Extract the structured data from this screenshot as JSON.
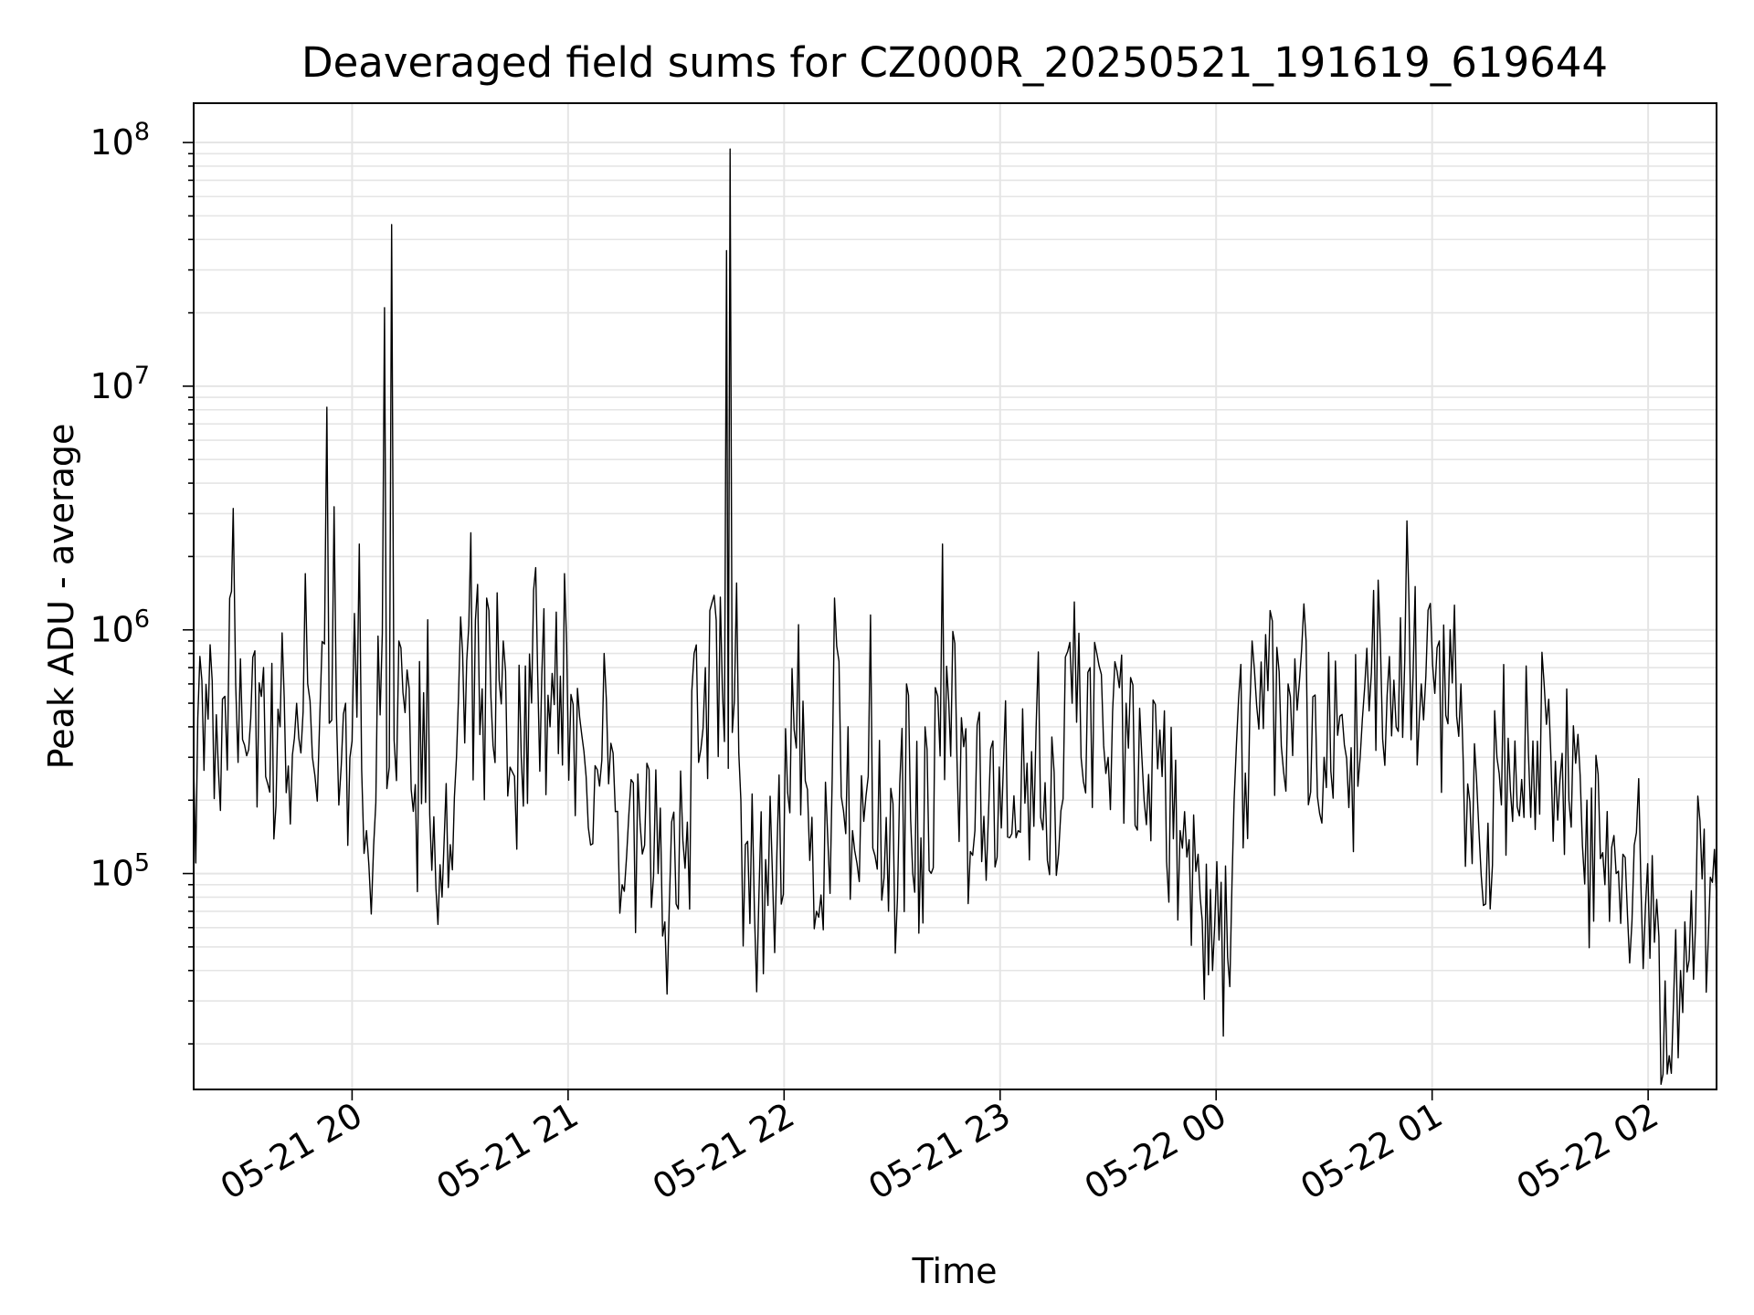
{
  "chart_data": {
    "type": "line",
    "title": "Deaveraged field sums for CZ000R_20250521_191619_619644",
    "xlabel": "Time",
    "ylabel": "Peak ADU - average",
    "y_scale": "log",
    "ylim": [
      13000,
      145000000
    ],
    "xlim": [
      "2025-05-21 19:16",
      "2025-05-22 02:19"
    ],
    "grid": true,
    "line_color": "#000000",
    "grid_color": "#e5e5e5",
    "x_ticks": [
      {
        "value": "2025-05-21 20:00",
        "label": "05-21 20"
      },
      {
        "value": "2025-05-21 21:00",
        "label": "05-21 21"
      },
      {
        "value": "2025-05-21 22:00",
        "label": "05-21 22"
      },
      {
        "value": "2025-05-21 23:00",
        "label": "05-21 23"
      },
      {
        "value": "2025-05-22 00:00",
        "label": "05-22 00"
      },
      {
        "value": "2025-05-22 01:00",
        "label": "05-22 01"
      },
      {
        "value": "2025-05-22 02:00",
        "label": "05-22 02"
      }
    ],
    "y_ticks": [
      {
        "value": 100000,
        "base": "10",
        "exp": "5"
      },
      {
        "value": 1000000,
        "base": "10",
        "exp": "6"
      },
      {
        "value": 10000000,
        "base": "10",
        "exp": "7"
      },
      {
        "value": 100000000,
        "base": "10",
        "exp": "8"
      }
    ],
    "series": [
      {
        "points": [
          [
            "2025-05-21 19:16",
            280000
          ],
          [
            "2025-05-21 19:20",
            430000
          ],
          [
            "2025-05-21 19:24",
            520000
          ],
          [
            "2025-05-21 19:26",
            1350000
          ],
          [
            "2025-05-21 19:27",
            3150000
          ],
          [
            "2025-05-21 19:29",
            760000
          ],
          [
            "2025-05-21 19:33",
            820000
          ],
          [
            "2025-05-21 19:36",
            250000
          ],
          [
            "2025-05-21 19:40",
            400000
          ],
          [
            "2025-05-21 19:44",
            360000
          ],
          [
            "2025-05-21 19:47",
            1700000
          ],
          [
            "2025-05-21 19:49",
            300000
          ],
          [
            "2025-05-21 19:51",
            420000
          ],
          [
            "2025-05-21 19:53",
            8200000
          ],
          [
            "2025-05-21 19:55",
            3200000
          ],
          [
            "2025-05-21 19:57",
            280000
          ],
          [
            "2025-05-21 20:00",
            350000
          ],
          [
            "2025-05-21 20:02",
            2250000
          ],
          [
            "2025-05-21 20:04",
            150000
          ],
          [
            "2025-05-21 20:06",
            130000
          ],
          [
            "2025-05-21 20:09",
            21000000
          ],
          [
            "2025-05-21 20:11",
            46000000
          ],
          [
            "2025-05-21 20:13",
            900000
          ],
          [
            "2025-05-21 20:17",
            180000
          ],
          [
            "2025-05-21 20:21",
            1100000
          ],
          [
            "2025-05-21 20:25",
            80000
          ],
          [
            "2025-05-21 20:29",
            300000
          ],
          [
            "2025-05-21 20:33",
            2500000
          ],
          [
            "2025-05-21 20:38",
            1200000
          ],
          [
            "2025-05-21 20:42",
            900000
          ],
          [
            "2025-05-21 20:47",
            300000
          ],
          [
            "2025-05-21 20:51",
            1800000
          ],
          [
            "2025-05-21 20:55",
            400000
          ],
          [
            "2025-05-21 20:59",
            1700000
          ],
          [
            "2025-05-21 21:05",
            250000
          ],
          [
            "2025-05-21 21:10",
            800000
          ],
          [
            "2025-05-21 21:15",
            90000
          ],
          [
            "2025-05-21 21:20",
            160000
          ],
          [
            "2025-05-21 21:25",
            100000
          ],
          [
            "2025-05-21 21:30",
            75000
          ],
          [
            "2025-05-21 21:35",
            800000
          ],
          [
            "2025-05-21 21:40",
            1300000
          ],
          [
            "2025-05-21 21:44",
            36000000
          ],
          [
            "2025-05-21 21:45",
            94000000
          ],
          [
            "2025-05-21 21:48",
            200000
          ],
          [
            "2025-05-21 21:53",
            80000
          ],
          [
            "2025-05-21 21:58",
            120000
          ],
          [
            "2025-05-21 22:04",
            1050000
          ],
          [
            "2025-05-21 22:09",
            70000
          ],
          [
            "2025-05-21 22:14",
            1350000
          ],
          [
            "2025-05-21 22:19",
            150000
          ],
          [
            "2025-05-21 22:24",
            1150000
          ],
          [
            "2025-05-21 22:29",
            70000
          ],
          [
            "2025-05-21 22:34",
            600000
          ],
          [
            "2025-05-21 22:38",
            140000
          ],
          [
            "2025-05-21 22:42",
            580000
          ],
          [
            "2025-05-21 22:44",
            2250000
          ],
          [
            "2025-05-21 22:48",
            300000
          ],
          [
            "2025-05-21 22:53",
            150000
          ],
          [
            "2025-05-21 22:58",
            350000
          ],
          [
            "2025-05-21 23:05",
            150000
          ],
          [
            "2025-05-21 23:10",
            400000
          ],
          [
            "2025-05-21 23:15",
            260000
          ],
          [
            "2025-05-21 23:20",
            500000
          ],
          [
            "2025-05-21 23:25",
            700000
          ],
          [
            "2025-05-21 23:30",
            300000
          ],
          [
            "2025-05-21 23:35",
            500000
          ],
          [
            "2025-05-21 23:40",
            200000
          ],
          [
            "2025-05-21 23:45",
            250000
          ],
          [
            "2025-05-21 23:50",
            150000
          ],
          [
            "2025-05-21 23:55",
            120000
          ],
          [
            "2025-05-21 23:59",
            40000
          ],
          [
            "2025-05-22 00:05",
            200000
          ],
          [
            "2025-05-22 00:10",
            900000
          ],
          [
            "2025-05-22 00:15",
            1200000
          ],
          [
            "2025-05-22 00:20",
            600000
          ],
          [
            "2025-05-22 00:25",
            900000
          ],
          [
            "2025-05-22 00:30",
            300000
          ],
          [
            "2025-05-22 00:35",
            450000
          ],
          [
            "2025-05-22 00:40",
            300000
          ],
          [
            "2025-05-22 00:45",
            1600000
          ],
          [
            "2025-05-22 00:50",
            400000
          ],
          [
            "2025-05-22 00:53",
            2800000
          ],
          [
            "2025-05-22 00:57",
            600000
          ],
          [
            "2025-05-22 01:02",
            900000
          ],
          [
            "2025-05-22 01:05",
            1000000
          ],
          [
            "2025-05-22 01:08",
            600000
          ],
          [
            "2025-05-22 01:13",
            150000
          ],
          [
            "2025-05-22 01:18",
            300000
          ],
          [
            "2025-05-22 01:23",
            350000
          ],
          [
            "2025-05-22 01:28",
            350000
          ],
          [
            "2025-05-22 01:33",
            300000
          ],
          [
            "2025-05-22 01:38",
            200000
          ],
          [
            "2025-05-22 01:43",
            200000
          ],
          [
            "2025-05-22 01:48",
            90000
          ],
          [
            "2025-05-22 01:53",
            120000
          ],
          [
            "2025-05-22 01:58",
            90000
          ],
          [
            "2025-05-22 02:03",
            55000
          ],
          [
            "2025-05-22 02:07",
            28000
          ],
          [
            "2025-05-22 02:09",
            40000
          ],
          [
            "2025-05-22 02:12",
            85000
          ],
          [
            "2025-05-22 02:15",
            95000
          ],
          [
            "2025-05-22 02:19",
            80000
          ]
        ]
      }
    ]
  }
}
